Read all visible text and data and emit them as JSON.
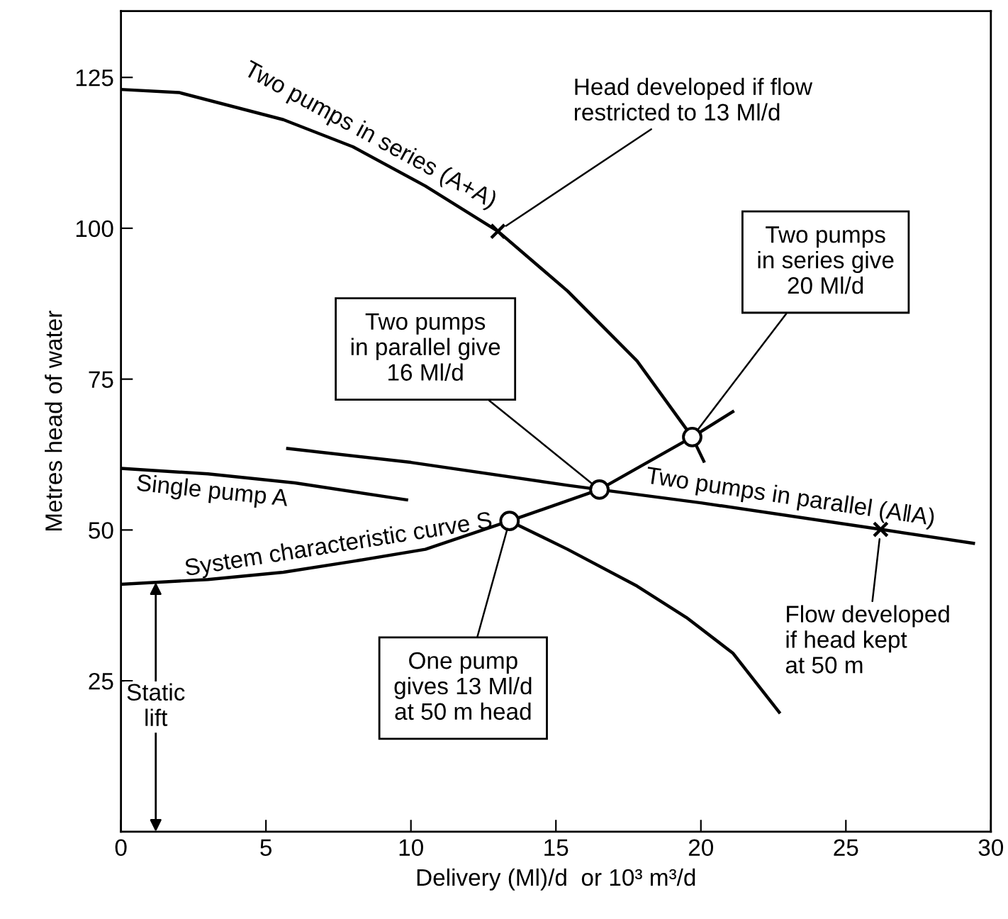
{
  "chart_data": {
    "type": "line",
    "xlabel": "Delivery (Ml)/d  or 10³ m³/d",
    "ylabel": "Metres head of water",
    "xlim": [
      0,
      30
    ],
    "ylim": [
      0,
      136
    ],
    "xticks": [
      0,
      5,
      10,
      15,
      20,
      25,
      30
    ],
    "yticks": [
      25,
      50,
      75,
      100,
      125
    ],
    "grid": false,
    "legend": false,
    "line_style": "solid",
    "marker": "none",
    "series": [
      {
        "name": "Two pumps in series (A+A)",
        "color": "#000000",
        "x": [
          0,
          2,
          5.6,
          8,
          10.5,
          13,
          15.4,
          17.8,
          19.7,
          20.1
        ],
        "values": [
          123,
          122.5,
          118,
          113.5,
          107,
          99.5,
          89.6,
          78,
          65.4,
          61.4
        ]
      },
      {
        "name": "Single pump A",
        "color": "#000000",
        "x": [
          0,
          3,
          6,
          9.85,
          11.6,
          13.4,
          15.4,
          17.8,
          19.5,
          21.1,
          22.7
        ],
        "values": [
          60.2,
          59.3,
          57.8,
          55,
          null,
          51.5,
          46.8,
          40.7,
          35.5,
          29.6,
          19.8
        ]
      },
      {
        "name": "System characteristic curve S",
        "color": "#000000",
        "x": [
          0,
          3,
          5.6,
          8,
          10.5,
          13.4,
          16.5,
          19.7,
          21.1
        ],
        "values": [
          41,
          41.8,
          43,
          44.8,
          46.8,
          51.5,
          56.7,
          65.4,
          69.6
        ]
      },
      {
        "name": "Two pumps in parallel (A‖A)",
        "color": "#000000",
        "x": [
          5.75,
          10,
          15.4,
          16.5,
          20,
          26.2,
          29.4
        ],
        "values": [
          63.5,
          61.2,
          57.4,
          56.7,
          54.5,
          50.1,
          47.8
        ]
      },
      {
        "type": "scatter",
        "marker": "circle",
        "color": "#000000",
        "x": [
          13.4,
          16.5,
          19.7
        ],
        "values": [
          51.5,
          56.7,
          65.4
        ]
      },
      {
        "type": "scatter",
        "marker": "cross",
        "color": "#000000",
        "x": [
          13,
          26.2
        ],
        "values": [
          99.5,
          50.1
        ]
      }
    ],
    "annotations": [
      {
        "text": "Head developed if flow\nrestricted to 13 Ml/d",
        "x": 13,
        "y": 99.5
      },
      {
        "text": "Two pumps\nin series give\n20 Ml/d",
        "x": 19.7,
        "y": 65.4
      },
      {
        "text": "Two pumps\nin parallel give\n16 Ml/d",
        "x": 16.5,
        "y": 56.7
      },
      {
        "text": "One pump\ngives 13 Ml/d\nat 50 m head",
        "x": 13.4,
        "y": 51.5
      },
      {
        "text": "Flow developed\nif head kept\nat 50 m",
        "x": 26.2,
        "y": 50.1
      },
      "Static\nlift"
    ]
  }
}
